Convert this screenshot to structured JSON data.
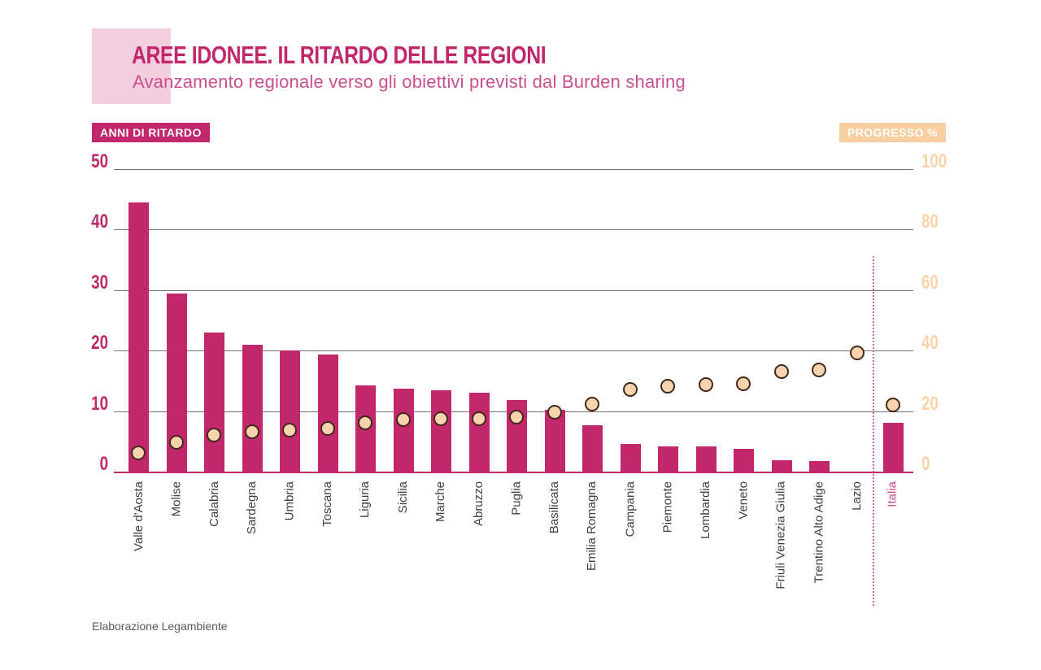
{
  "header": {
    "title": "AREE IDONEE. IL RITARDO DELLE REGIONI",
    "subtitle": "Avanzamento regionale verso gli obiettivi previsti dal Burden sharing"
  },
  "legend": {
    "left_label": "ANNI DI RITARDO",
    "right_label": "PROGRESSO %"
  },
  "footer": {
    "source": "Elaborazione Legambiente"
  },
  "colors": {
    "magenta": "#c1276a",
    "subtitle": "#ca4f8e",
    "peach": "#f8cda0",
    "peach_text": "#f9d3a9",
    "dot_fill": "#f8d3ae",
    "dot_border": "#40291c",
    "grid": "#717375",
    "xlabel": "#404041",
    "pink_square": "#f2cede",
    "dotted": "#d4679f",
    "footer": "#595a5c"
  },
  "chart_data": {
    "type": "bar",
    "subtype": "dual-axis bar + scatter",
    "title": "AREE IDONEE. IL RITARDO DELLE REGIONI",
    "subtitle": "Avanzamento regionale verso gli obiettivi previsti dal Burden sharing",
    "grid": true,
    "legend_position": "top (left badge = bars, right badge = dots)",
    "left_axis": {
      "label": "ANNI DI RITARDO",
      "range": [
        0,
        50
      ],
      "ticks": [
        50,
        40,
        30,
        20,
        10,
        0
      ]
    },
    "right_axis": {
      "label": "PROGRESSO %",
      "range": [
        0,
        100
      ],
      "ticks": [
        100,
        80,
        60,
        40,
        20,
        0
      ]
    },
    "categories": [
      "Valle d'Aosta",
      "Molise",
      "Calabria",
      "Sardegna",
      "Umbria",
      "Toscana",
      "Liguria",
      "Sicilia",
      "Marche",
      "Abruzzo",
      "Puglia",
      "Basilicata",
      "Emilia Romagna",
      "Campania",
      "Piemonte",
      "Lombardia",
      "Veneto",
      "Friuli Venezia Giulia",
      "Trentino Alto Adige",
      "Lazio",
      "Italia"
    ],
    "series": [
      {
        "name": "ANNI DI RITARDO",
        "type": "bar",
        "axis": "left",
        "values": [
          44.5,
          29.5,
          23,
          21,
          20,
          19.3,
          14.2,
          13.7,
          13.5,
          13,
          11.8,
          10.2,
          7.6,
          4.6,
          4.2,
          4.2,
          3.7,
          1.9,
          1.7,
          0,
          8
        ]
      },
      {
        "name": "PROGRESSO %",
        "type": "scatter",
        "axis": "right",
        "values": [
          6,
          9.5,
          12,
          13,
          13.5,
          14,
          16,
          17,
          17.3,
          17.3,
          18,
          19.5,
          22.3,
          27,
          28,
          28.5,
          29,
          33,
          33.5,
          39,
          22
        ]
      }
    ],
    "highlight_category": "Italia",
    "annotations": [
      "dotted vertical separator between Lazio and Italia"
    ]
  }
}
